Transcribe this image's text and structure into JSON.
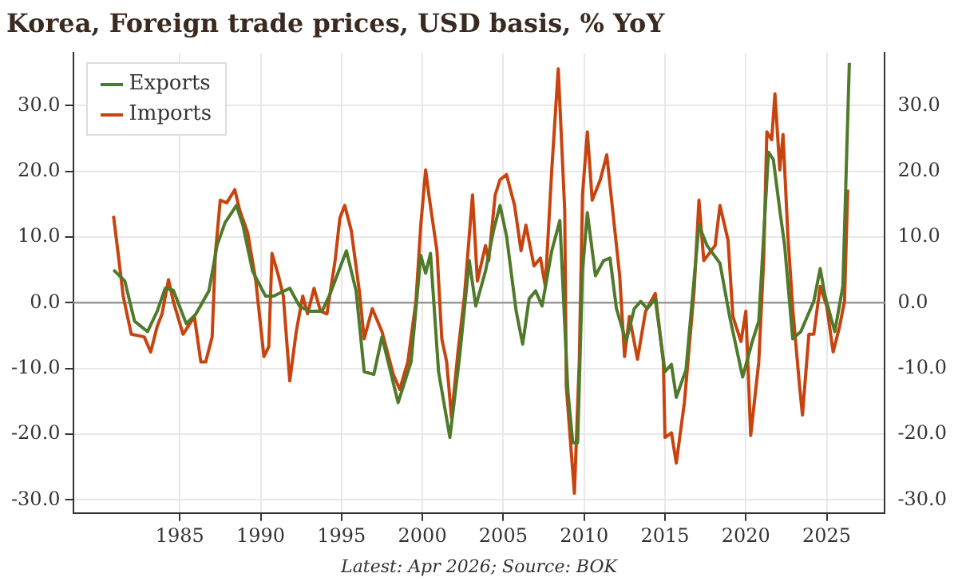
{
  "chart_data": {
    "type": "line",
    "title": "Korea, Foreign trade prices, USD basis, % YoY",
    "annotations": [
      "Latest: Apr 2026; Source: BOK"
    ],
    "xlim": [
      1978.4,
      2028.6
    ],
    "xticks": [
      1985,
      1990,
      1995,
      2000,
      2005,
      2010,
      2015,
      2020,
      2025
    ],
    "ylim": [
      -32,
      38
    ],
    "yticks": [
      {
        "value": -30,
        "label": "-30.0"
      },
      {
        "value": -20,
        "label": "-20.0"
      },
      {
        "value": -10,
        "label": "-10.0"
      },
      {
        "value": 0,
        "label": "0.0"
      },
      {
        "value": 10,
        "label": "10.0"
      },
      {
        "value": 20,
        "label": "20.0"
      },
      {
        "value": 30,
        "label": "30.0"
      }
    ],
    "y2lim": [
      -32,
      38
    ],
    "y2ticks": [
      {
        "value": -30,
        "label": "-30.0"
      },
      {
        "value": -20,
        "label": "-20.0"
      },
      {
        "value": -10,
        "label": "-10.0"
      },
      {
        "value": 0,
        "label": "0.0"
      },
      {
        "value": 10,
        "label": "10.0"
      },
      {
        "value": 20,
        "label": "20.0"
      },
      {
        "value": 30,
        "label": "30.0"
      }
    ],
    "grid": true,
    "legend": "top left",
    "ref_lines": [
      {
        "axis": "y",
        "value": 0,
        "color": "#999999"
      }
    ],
    "series": [
      {
        "name": "Exports",
        "color": "#4e7a2a",
        "x": [
          1980.9,
          1981.6,
          1982.2,
          1983.0,
          1983.6,
          1984.1,
          1984.6,
          1985.4,
          1986.0,
          1986.8,
          1987.3,
          1987.8,
          1988.5,
          1988.9,
          1989.5,
          1990.3,
          1990.8,
          1991.8,
          1992.4,
          1993.0,
          1993.8,
          1994.3,
          1995.3,
          1995.9,
          1996.4,
          1997.0,
          1997.5,
          1998.5,
          1999.3,
          1999.9,
          2000.2,
          2000.5,
          2001.0,
          2001.7,
          2002.3,
          2002.9,
          2003.3,
          2003.9,
          2004.4,
          2004.8,
          2005.2,
          2005.8,
          2006.2,
          2006.6,
          2007.0,
          2007.4,
          2008.0,
          2008.5,
          2009.0,
          2009.3,
          2009.6,
          2009.9,
          2010.2,
          2010.7,
          2011.2,
          2011.6,
          2012.0,
          2012.6,
          2013.1,
          2013.5,
          2013.9,
          2014.4,
          2015.0,
          2015.4,
          2015.7,
          2016.3,
          2017.1,
          2017.6,
          2018.4,
          2019.0,
          2019.6,
          2019.8,
          2020.4,
          2020.8,
          2021.4,
          2021.7,
          2022.1,
          2022.4,
          2022.9,
          2023.4,
          2024.2,
          2024.6,
          2024.9,
          2025.5,
          2026.0,
          2026.4
        ],
        "values": [
          5.0,
          3.3,
          -2.8,
          -4.4,
          -1.3,
          2.2,
          1.9,
          -3.2,
          -1.7,
          1.8,
          8.7,
          12.2,
          14.8,
          11.8,
          4.8,
          1.0,
          1.0,
          2.2,
          -0.5,
          -1.3,
          -1.3,
          1.4,
          7.9,
          1.8,
          -10.5,
          -10.9,
          -5.2,
          -15.2,
          -9.0,
          7.2,
          4.5,
          7.5,
          -10.5,
          -20.5,
          -8.2,
          6.4,
          -0.5,
          4.8,
          11.0,
          14.8,
          10.2,
          -1.3,
          -6.3,
          0.6,
          1.8,
          -0.5,
          7.9,
          12.5,
          -13.6,
          -21.3,
          -21.3,
          4.8,
          13.7,
          4.1,
          6.4,
          6.8,
          -0.9,
          -5.9,
          -0.9,
          0.2,
          -0.9,
          0.6,
          -10.5,
          -9.4,
          -14.4,
          -10.2,
          11.8,
          8.7,
          6.0,
          -2.1,
          -9.0,
          -11.3,
          -5.9,
          -2.8,
          22.9,
          21.8,
          14.1,
          8.7,
          -5.5,
          -4.4,
          0.2,
          5.2,
          1.0,
          -4.4,
          2.5,
          36.5
        ]
      },
      {
        "name": "Imports",
        "color": "#c8430e",
        "x": [
          1980.9,
          1981.2,
          1981.5,
          1981.8,
          1982.0,
          1982.8,
          1983.2,
          1983.6,
          1983.9,
          1984.3,
          1984.6,
          1985.2,
          1985.9,
          1986.3,
          1986.6,
          1987.0,
          1987.2,
          1987.5,
          1987.9,
          1988.4,
          1988.7,
          1989.2,
          1989.7,
          1990.2,
          1990.5,
          1990.7,
          1991.1,
          1991.4,
          1991.8,
          1992.2,
          1992.6,
          1992.9,
          1993.3,
          1993.7,
          1994.1,
          1994.6,
          1994.9,
          1995.2,
          1995.6,
          1996.1,
          1996.4,
          1996.9,
          1997.5,
          1998.2,
          1998.6,
          1999.1,
          1999.6,
          1999.9,
          2000.2,
          2000.4,
          2000.9,
          2001.2,
          2001.5,
          2001.8,
          2002.2,
          2002.6,
          2003.1,
          2003.4,
          2003.9,
          2004.1,
          2004.5,
          2004.8,
          2005.2,
          2005.7,
          2006.1,
          2006.4,
          2006.9,
          2007.3,
          2007.6,
          2008.0,
          2008.4,
          2008.8,
          2008.9,
          2009.4,
          2009.7,
          2009.9,
          2010.2,
          2010.5,
          2011.0,
          2011.4,
          2011.9,
          2012.2,
          2012.5,
          2012.8,
          2013.3,
          2013.8,
          2014.4,
          2014.9,
          2015.0,
          2015.4,
          2015.7,
          2016.2,
          2016.8,
          2017.1,
          2017.4,
          2018.1,
          2018.4,
          2018.9,
          2019.2,
          2019.7,
          2020.0,
          2020.3,
          2020.8,
          2021.1,
          2021.3,
          2021.6,
          2021.8,
          2022.1,
          2022.3,
          2022.6,
          2022.9,
          2023.3,
          2023.5,
          2023.9,
          2024.2,
          2024.6,
          2025.0,
          2025.4,
          2025.8,
          2026.1,
          2026.3
        ],
        "values": [
          13.2,
          7.2,
          1.0,
          -2.5,
          -4.8,
          -5.2,
          -7.5,
          -3.6,
          -1.7,
          3.5,
          0.2,
          -4.8,
          -2.1,
          -9.0,
          -9.0,
          -5.2,
          7.5,
          15.6,
          15.2,
          17.2,
          14.1,
          10.6,
          3.3,
          -8.2,
          -6.7,
          7.5,
          4.1,
          1.0,
          -11.9,
          -4.4,
          1.0,
          -1.7,
          2.2,
          -1.3,
          -1.7,
          6.4,
          12.9,
          14.8,
          11.0,
          1.8,
          -5.5,
          -0.9,
          -4.4,
          -10.9,
          -13.2,
          -9.0,
          0.2,
          11.8,
          20.2,
          16.4,
          7.9,
          -5.5,
          -9.0,
          -17.5,
          -7.5,
          1.0,
          16.4,
          3.3,
          8.7,
          6.4,
          16.4,
          18.7,
          19.5,
          14.8,
          7.9,
          11.8,
          5.6,
          6.8,
          2.5,
          20.2,
          35.6,
          14.1,
          -12.8,
          -29.0,
          -9.0,
          16.4,
          26.0,
          15.6,
          18.7,
          22.5,
          11.0,
          4.1,
          -8.2,
          -2.1,
          -8.6,
          -1.3,
          1.4,
          -9.0,
          -20.5,
          -19.8,
          -24.4,
          -15.2,
          1.8,
          15.6,
          6.4,
          8.7,
          14.8,
          9.5,
          -2.1,
          -5.9,
          -1.3,
          -20.2,
          -9.0,
          6.4,
          26.0,
          24.8,
          31.8,
          20.2,
          25.6,
          10.2,
          -0.9,
          -12.1,
          -17.1,
          -4.8,
          -4.8,
          2.5,
          -0.5,
          -7.5,
          -3.6,
          0.2,
          17.2
        ]
      }
    ]
  }
}
